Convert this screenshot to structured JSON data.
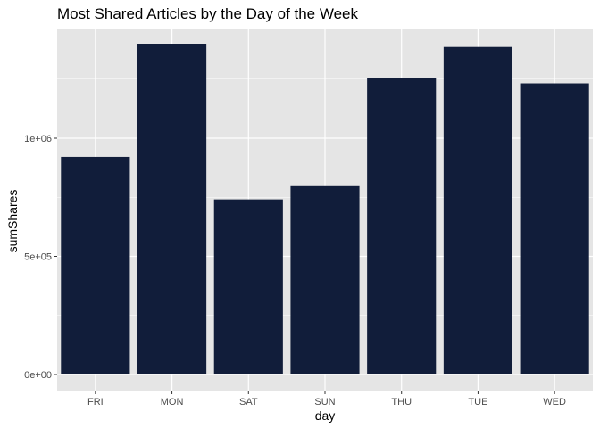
{
  "chart_data": {
    "type": "bar",
    "title": "Most Shared Articles by the Day of the Week",
    "xlabel": "day",
    "ylabel": "sumShares",
    "categories": [
      "FRI",
      "MON",
      "SAT",
      "SUN",
      "THU",
      "TUE",
      "WED"
    ],
    "values": [
      921000,
      1400000,
      741000,
      797000,
      1253000,
      1386000,
      1232000
    ],
    "ylim": [
      0,
      1450000
    ],
    "yticks": [
      0,
      500000,
      1000000
    ],
    "ytick_labels": [
      "0e+00",
      "5e+05",
      "1e+06"
    ],
    "grid": true,
    "colors": {
      "bar": "#111d3a",
      "panel": "#e5e5e5",
      "grid_major": "#ffffff",
      "tick_text": "#4d4d4d"
    }
  }
}
